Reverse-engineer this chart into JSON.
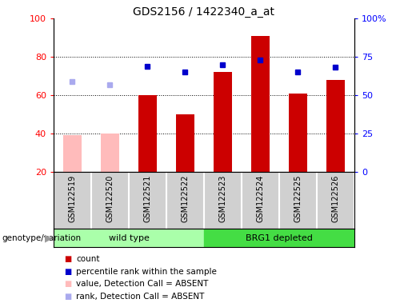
{
  "title": "GDS2156 / 1422340_a_at",
  "samples": [
    "GSM122519",
    "GSM122520",
    "GSM122521",
    "GSM122522",
    "GSM122523",
    "GSM122524",
    "GSM122525",
    "GSM122526"
  ],
  "count_values": [
    null,
    null,
    60,
    50,
    72,
    91,
    61,
    68
  ],
  "count_absent": [
    39,
    40,
    null,
    null,
    null,
    null,
    null,
    null
  ],
  "rank_values": [
    null,
    null,
    69,
    65,
    70,
    73,
    65,
    68
  ],
  "rank_absent": [
    59,
    57,
    null,
    null,
    null,
    null,
    null,
    null
  ],
  "ylim_left": [
    20,
    100
  ],
  "ylim_right": [
    0,
    100
  ],
  "yticks_left": [
    20,
    40,
    60,
    80,
    100
  ],
  "yticks_right": [
    0,
    25,
    50,
    75,
    100
  ],
  "ytick_labels_right": [
    "0",
    "25",
    "50",
    "75",
    "100%"
  ],
  "bar_width": 0.5,
  "count_color": "#cc0000",
  "count_absent_color": "#ffbbbb",
  "rank_color": "#0000cc",
  "rank_absent_color": "#aaaaee",
  "wild_type_color": "#aaffaa",
  "brg1_color": "#44dd44",
  "group_label": "genotype/variation",
  "legend_items": [
    {
      "label": "count",
      "color": "#cc0000"
    },
    {
      "label": "percentile rank within the sample",
      "color": "#0000cc"
    },
    {
      "label": "value, Detection Call = ABSENT",
      "color": "#ffbbbb"
    },
    {
      "label": "rank, Detection Call = ABSENT",
      "color": "#aaaaee"
    }
  ]
}
